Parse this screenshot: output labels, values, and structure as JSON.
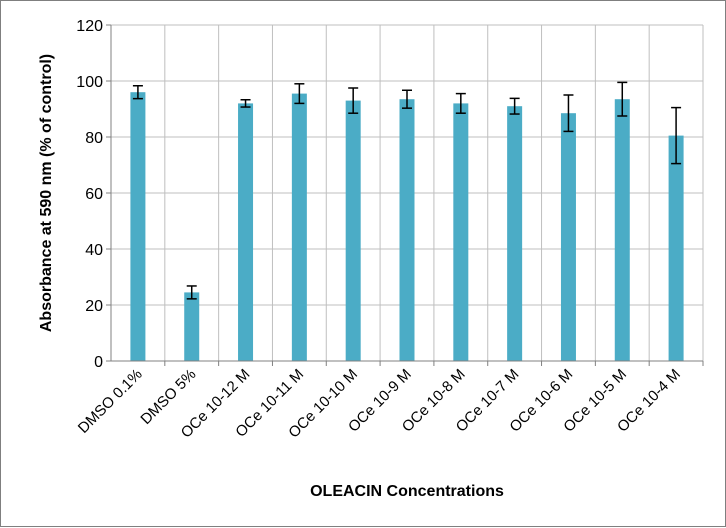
{
  "chart_data": {
    "type": "bar",
    "title": "",
    "xlabel": "OLEACIN Concentrations",
    "ylabel": "Absorbance at 590 nm (% of control)",
    "ylim": [
      0,
      120
    ],
    "yticks": [
      0,
      20,
      40,
      60,
      80,
      100,
      120
    ],
    "grid": true,
    "legend": "none",
    "bar_color": "#4bacc6",
    "categories": [
      "DMSO 0.1%",
      "DMSO 5%",
      "OCe 10-12 M",
      "OCe 10-11 M",
      "OCe 10-10 M",
      "OCe 10-9 M",
      "OCe 10-8 M",
      "OCe 10-7 M",
      "OCe 10-6 M",
      "OCe 10-5 M",
      "OCe 10-4 M"
    ],
    "values": [
      96,
      24.5,
      92,
      95.5,
      93,
      93.5,
      92,
      91,
      88.5,
      93.5,
      80.5
    ],
    "errors": [
      2.3,
      2.3,
      1.3,
      3.5,
      4.5,
      3.2,
      3.5,
      2.8,
      6.5,
      6,
      10
    ]
  }
}
